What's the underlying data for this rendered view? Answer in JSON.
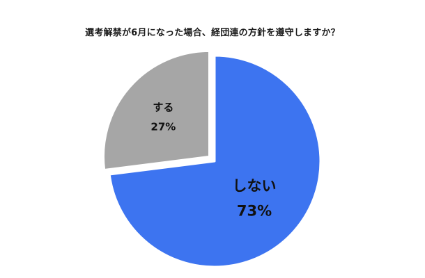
{
  "chart_data": {
    "type": "pie",
    "title": "選考解禁が6月になった場合、経団連の方針を遵守しますか？",
    "slices": [
      {
        "label": "しない",
        "value": 73,
        "value_label": "73%",
        "color": "#3d74f0"
      },
      {
        "label": "する",
        "value": 27,
        "value_label": "27%",
        "color": "#a6a6a6"
      }
    ],
    "start_angle_deg": 0,
    "direction": "clockwise",
    "exploded": [
      "する"
    ],
    "edge_color": "#ffffff"
  }
}
